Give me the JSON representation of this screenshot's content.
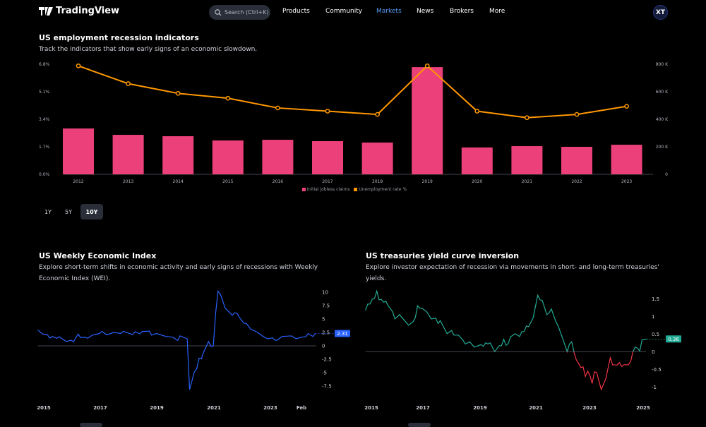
{
  "header": {
    "brand": "TradingView",
    "search_placeholder": "Search (Ctrl+K)",
    "nav": [
      "Products",
      "Community",
      "Markets",
      "News",
      "Brokers",
      "More"
    ],
    "active_nav": "Markets",
    "avatar": "XT"
  },
  "colors": {
    "accent": "#5b9cf6",
    "bars": "#ec407a",
    "line": "#ff9800",
    "wei": "#2962ff",
    "yield_pos": "#22ab94",
    "yield_neg": "#f23645"
  },
  "section1": {
    "title": "US employment recession indicators",
    "description": "Track the indicators that show early signs of an economic slowdown.",
    "ranges": [
      "1Y",
      "5Y",
      "10Y"
    ],
    "active_range": "10Y"
  },
  "section2": {
    "title": "US Weekly Economic Index",
    "description": "Explore short-term shifts in economic activity and early signs of recessions with Weekly Economic Index (WEI)."
  },
  "section3": {
    "title": "US treasuries yield curve inversion",
    "description": "Explore investor expectation of recession via movements in short- and long-term treasuries' yields."
  },
  "chart_data": [
    {
      "type": "bar",
      "categories": [
        "2012",
        "2013",
        "2014",
        "2015",
        "2016",
        "2017",
        "2018",
        "2019",
        "2020",
        "2021",
        "2022",
        "2023"
      ],
      "series": [
        {
          "name": "Initial jobless claims",
          "type": "bar",
          "axis": "right",
          "values": [
            333000,
            287000,
            277000,
            246000,
            251000,
            241000,
            231000,
            779000,
            195000,
            205000,
            200000,
            215000
          ]
        },
        {
          "name": "Unemployment rate %",
          "type": "line",
          "axis": "left",
          "values": [
            6.7,
            5.6,
            5.0,
            4.7,
            4.1,
            3.9,
            3.7,
            6.7,
            3.9,
            3.5,
            3.7,
            4.2
          ]
        }
      ],
      "left_ticks": [
        "0.0%",
        "1.7%",
        "3.4%",
        "5.1%",
        "6.8%"
      ],
      "left_ylim": [
        0,
        6.8
      ],
      "right_ticks": [
        "0",
        "200 K",
        "400 K",
        "600 K",
        "800 K"
      ],
      "right_ylim": [
        0,
        800000
      ],
      "legend": "bottom"
    },
    {
      "type": "line",
      "x_ticks": [
        "2015",
        "2017",
        "2019",
        "2021",
        "2023",
        "Feb"
      ],
      "y_ticks": [
        "10",
        "7.5",
        "5",
        "2.5",
        "0",
        "-2.5",
        "-5",
        "-7.5"
      ],
      "last_value": "2.31",
      "x": [
        "2014-10",
        "2014-12",
        "2015-02",
        "2015-03",
        "2015-04",
        "2015-06",
        "2015-07",
        "2015-10",
        "2015-12",
        "2016-01",
        "2016-03",
        "2016-04",
        "2016-06",
        "2016-07",
        "2016-09",
        "2016-12",
        "2017-01",
        "2017-03",
        "2017-06",
        "2017-09",
        "2017-10",
        "2018-02",
        "2018-03",
        "2018-05",
        "2018-06",
        "2018-09",
        "2018-10",
        "2018-12",
        "2019-04",
        "2019-07",
        "2019-09",
        "2019-10",
        "2020-01",
        "2020-02",
        "2020-04",
        "2020-05",
        "2020-06",
        "2020-07",
        "2020-08",
        "2020-10",
        "2020-11",
        "2020-12",
        "2021-01",
        "2021-02",
        "2021-03",
        "2021-05",
        "2021-06",
        "2021-08",
        "2021-09",
        "2021-10",
        "2021-11",
        "2022-01",
        "2022-02",
        "2022-04",
        "2022-05",
        "2022-07",
        "2022-09",
        "2022-11",
        "2023-01",
        "2023-02",
        "2023-03",
        "2023-05",
        "2023-07",
        "2023-09",
        "2023-11",
        "2024-01",
        "2024-03",
        "2024-04",
        "2024-06",
        "2024-07"
      ],
      "y": [
        2.95,
        2.2,
        2.1,
        1.45,
        1.75,
        1.4,
        1.7,
        0.8,
        1.05,
        0.75,
        2.2,
        1.55,
        1.6,
        1.4,
        2.0,
        2.3,
        2.7,
        2.05,
        2.5,
        2.3,
        2.7,
        2.1,
        2.65,
        2.25,
        2.65,
        2.75,
        2.0,
        2.3,
        1.75,
        1.6,
        1.0,
        1.85,
        1.3,
        -8.15,
        -4.85,
        -4.3,
        -2.3,
        -2.4,
        -1.1,
        0.8,
        -0.1,
        0,
        6.15,
        10.2,
        9.6,
        7.05,
        6.6,
        5.7,
        6.15,
        6.1,
        5.3,
        4.2,
        4.15,
        3.0,
        2.9,
        2.4,
        1.75,
        1.3,
        1.5,
        1.05,
        1.05,
        1.75,
        1.8,
        1.85,
        1.3,
        1.6,
        1.7,
        2.3,
        1.75,
        2.31
      ]
    },
    {
      "type": "line",
      "x_ticks": [
        "2015",
        "2017",
        "2019",
        "2021",
        "2023",
        "2025"
      ],
      "y_ticks": [
        "1.5",
        "1",
        "0.5",
        "0",
        "-0.5",
        "-1"
      ],
      "last_value": "0.36",
      "x": [
        "2014-10",
        "2014-11",
        "2014-12",
        "2015-01",
        "2015-02",
        "2015-03",
        "2015-04",
        "2015-05",
        "2015-06",
        "2015-07",
        "2015-08",
        "2015-10",
        "2015-11",
        "2016-01",
        "2016-03",
        "2016-05",
        "2016-07",
        "2016-08",
        "2016-09",
        "2016-10",
        "2016-11",
        "2017-01",
        "2017-03",
        "2017-05",
        "2017-06",
        "2017-07",
        "2017-10",
        "2017-12",
        "2018-01",
        "2018-03",
        "2018-05",
        "2018-06",
        "2018-08",
        "2018-10",
        "2019-01",
        "2019-02",
        "2019-03",
        "2019-04",
        "2019-05",
        "2019-07",
        "2019-09",
        "2019-10",
        "2019-11",
        "2019-12",
        "2020-01",
        "2020-02",
        "2020-04",
        "2020-06",
        "2020-07",
        "2020-08",
        "2020-09",
        "2020-10",
        "2020-12",
        "2021-02",
        "2021-03",
        "2021-04",
        "2021-06",
        "2021-07",
        "2021-08",
        "2021-10",
        "2021-11",
        "2022-01",
        "2022-03",
        "2022-04",
        "2022-05",
        "2022-06",
        "2022-07",
        "2022-08",
        "2022-09",
        "2022-10",
        "2022-11",
        "2022-12",
        "2023-01",
        "2023-02",
        "2023-03",
        "2023-04",
        "2023-06",
        "2023-08",
        "2023-10",
        "2023-11",
        "2024-01",
        "2024-02",
        "2024-03",
        "2024-04",
        "2024-06",
        "2024-07",
        "2024-08",
        "2024-09",
        "2024-10",
        "2024-11",
        "2024-12",
        "2025-02"
      ],
      "y": [
        1.17,
        1.35,
        1.35,
        1.49,
        1.51,
        1.72,
        1.47,
        1.48,
        1.4,
        1.43,
        1.3,
        1.13,
        0.93,
        1.05,
        0.9,
        0.75,
        0.85,
        0.97,
        1.3,
        1.23,
        1.23,
        1.13,
        0.93,
        0.95,
        0.8,
        0.88,
        0.51,
        0.6,
        0.47,
        0.47,
        0.33,
        0.22,
        0.28,
        0.13,
        0.2,
        0.15,
        0.25,
        0.22,
        0.25,
        0,
        0.17,
        0.17,
        0.35,
        0.18,
        0.23,
        0.42,
        0.51,
        0.43,
        0.57,
        0.57,
        0.73,
        0.71,
        0.97,
        1.6,
        1.47,
        1.45,
        1.05,
        1.1,
        1.21,
        0.85,
        0.73,
        0.37,
        0,
        0.22,
        0.28,
        -0.02,
        -0.23,
        -0.33,
        -0.45,
        -0.43,
        -0.7,
        -0.55,
        -0.67,
        -0.9,
        -0.57,
        -0.59,
        -1.07,
        -0.77,
        -0.17,
        -0.37,
        -0.38,
        -0.31,
        -0.42,
        -0.37,
        -0.37,
        -0.27,
        0,
        0.13,
        0.1,
        0.02,
        0.33,
        0.36
      ]
    }
  ]
}
